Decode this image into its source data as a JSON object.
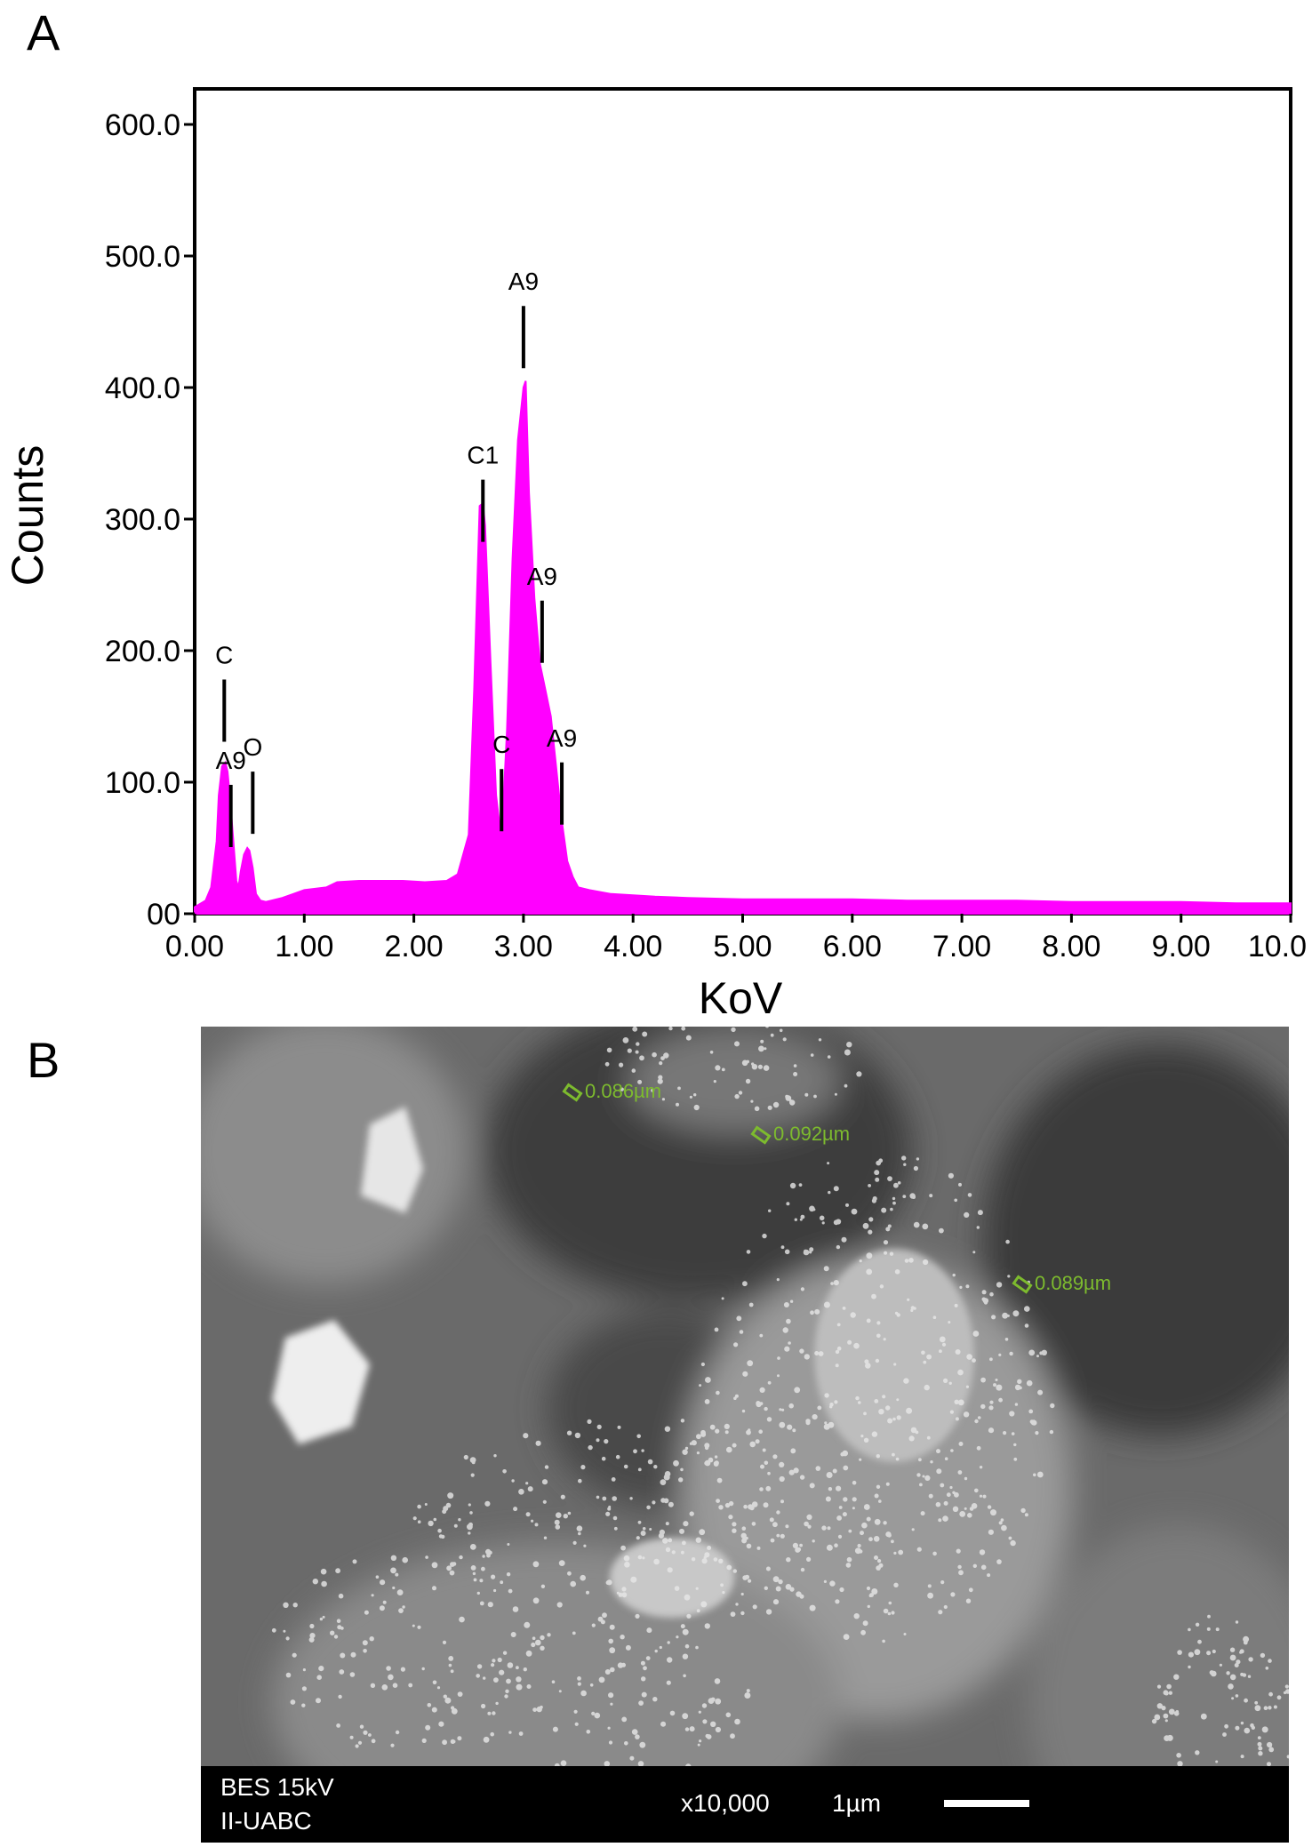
{
  "panel_a": {
    "letter": "A"
  },
  "panel_b": {
    "letter": "B"
  },
  "chart_data": {
    "type": "area",
    "title": "",
    "xlabel": "KoV",
    "ylabel": "Counts",
    "xlim": [
      0,
      10
    ],
    "ylim": [
      0,
      600
    ],
    "x_ticks": [
      "0.00",
      "1.00",
      "2.00",
      "3.00",
      "4.00",
      "5.00",
      "6.00",
      "7.00",
      "8.00",
      "9.00",
      "10.0"
    ],
    "y_ticks": [
      "00",
      "100.0",
      "200.0",
      "300.0",
      "400.0",
      "500.0",
      "600.0"
    ],
    "fill_color": "#ff00ff",
    "series": [
      {
        "x": [
          0.0,
          0.1,
          0.15,
          0.2,
          0.22,
          0.25,
          0.28,
          0.3,
          0.32,
          0.35,
          0.38,
          0.4,
          0.42,
          0.45,
          0.48,
          0.5,
          0.53,
          0.56,
          0.6,
          0.65,
          0.7,
          0.8,
          0.9,
          1.0,
          1.2,
          1.3,
          1.5,
          1.7,
          1.9,
          2.1,
          2.3,
          2.4,
          2.5,
          2.55,
          2.6,
          2.63,
          2.65,
          2.7,
          2.75,
          2.8,
          2.85,
          2.9,
          2.95,
          3.0,
          3.02,
          3.05,
          3.1,
          3.15,
          3.2,
          3.25,
          3.3,
          3.35,
          3.4,
          3.45,
          3.5,
          3.6,
          3.8,
          4.0,
          4.2,
          4.5,
          5.0,
          5.5,
          6.0,
          6.5,
          7.0,
          7.5,
          8.0,
          8.5,
          9.0,
          9.5,
          10.0
        ],
        "y": [
          5,
          10,
          20,
          55,
          90,
          112,
          115,
          108,
          90,
          58,
          25,
          20,
          32,
          45,
          50,
          48,
          35,
          15,
          10,
          9,
          10,
          12,
          15,
          18,
          20,
          24,
          25,
          25,
          25,
          24,
          25,
          30,
          60,
          170,
          310,
          312,
          295,
          190,
          90,
          55,
          140,
          270,
          360,
          400,
          405,
          320,
          240,
          190,
          170,
          150,
          110,
          70,
          40,
          28,
          20,
          18,
          15,
          14,
          13,
          12,
          11,
          11,
          11,
          10,
          10,
          10,
          9,
          9,
          9,
          8,
          8
        ]
      }
    ],
    "annotations": [
      {
        "label": "C",
        "x": 0.27,
        "y_top": 178
      },
      {
        "label": "A9",
        "x": 0.33,
        "y_top": 98
      },
      {
        "label": "O",
        "x": 0.53,
        "y_top": 108
      },
      {
        "label": "C1",
        "x": 2.63,
        "y_top": 330
      },
      {
        "label": "C",
        "x": 2.8,
        "y_top": 110
      },
      {
        "label": "A9",
        "x": 3.0,
        "y_top": 462
      },
      {
        "label": "A9",
        "x": 3.17,
        "y_top": 238
      },
      {
        "label": "A9",
        "x": 3.35,
        "y_top": 115
      }
    ]
  },
  "sem": {
    "mode": "BES 15kV",
    "institution": "II-UABC",
    "magnification": "x10,000",
    "scale": "1µm",
    "measurements": [
      "0.086µm",
      "0.092µm",
      "0.089µm"
    ]
  }
}
